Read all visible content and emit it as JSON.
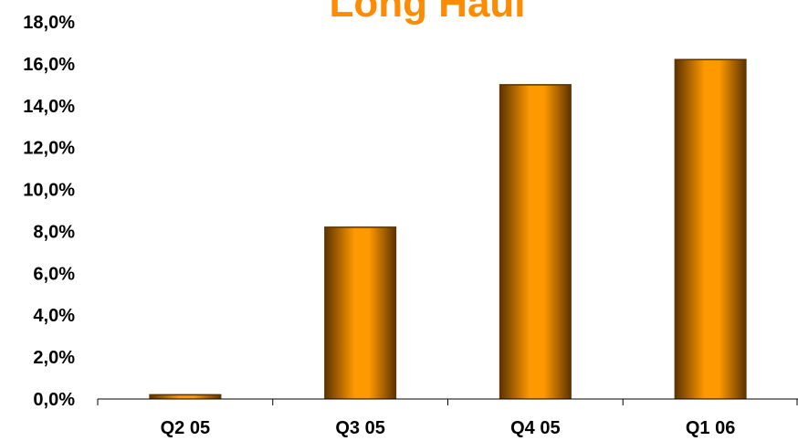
{
  "chart_data": {
    "type": "bar",
    "title": "Long Haul",
    "xlabel": "",
    "ylabel": "",
    "categories": [
      "Q2 05",
      "Q3 05",
      "Q4 05",
      "Q1 06"
    ],
    "values": [
      0.2,
      8.2,
      15.0,
      16.2
    ],
    "ylim": [
      0,
      18
    ],
    "ytick_labels": [
      "0,0%",
      "2,0%",
      "4,0%",
      "6,0%",
      "8,0%",
      "10,0%",
      "12,0%",
      "14,0%",
      "16,0%",
      "18,0%"
    ],
    "grid": false,
    "legend": "none"
  },
  "colors": {
    "title": "#FF8C00",
    "bar_light": "#FF9900",
    "bar_dark": "#5A3100",
    "axis": "#000000"
  }
}
